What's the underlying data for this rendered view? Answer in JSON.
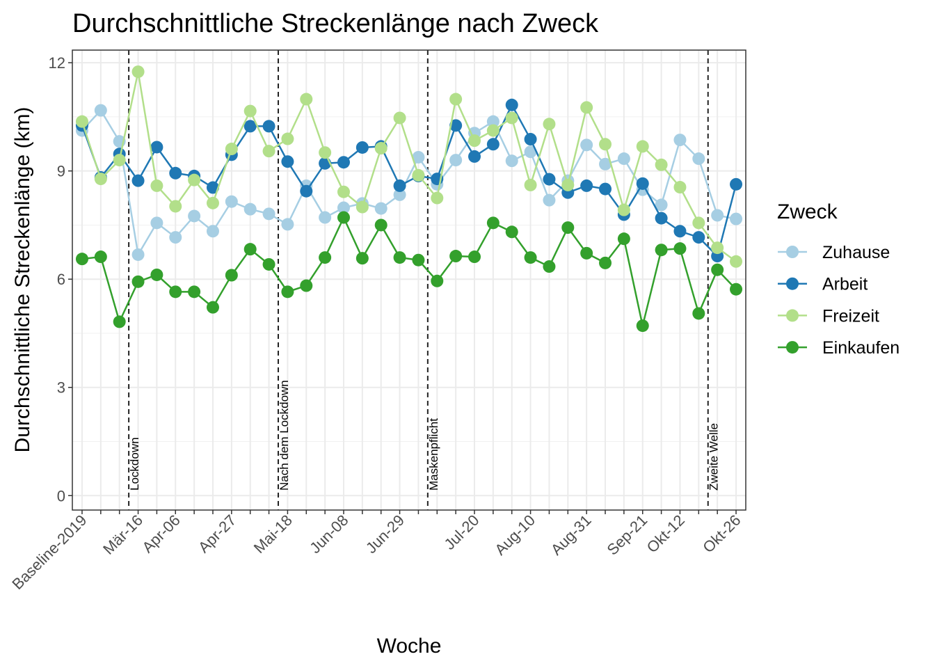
{
  "chart_data": {
    "type": "line",
    "title": "Durchschnittliche Streckenlänge nach Zweck",
    "x_label": "Woche",
    "y_label": "Durchschnittliche Streckenlänge (km)",
    "legend_title": "Zweck",
    "categories": [
      "Baseline-2019",
      null,
      null,
      "Mär-16",
      null,
      "Apr-06",
      null,
      null,
      "Apr-27",
      null,
      null,
      "Mai-18",
      null,
      null,
      "Jun-08",
      null,
      null,
      "Jun-29",
      null,
      null,
      null,
      "Jul-20",
      null,
      null,
      "Aug-10",
      null,
      null,
      "Aug-31",
      null,
      null,
      "Sep-21",
      null,
      "Okt-12",
      null,
      null,
      "Okt-26"
    ],
    "ylim": [
      -0.4,
      12.35
    ],
    "yticks": [
      0,
      3,
      6,
      9,
      12
    ],
    "grid": true,
    "legend": "right",
    "series": [
      {
        "name": "Zuhause",
        "color": "#a6cee3",
        "values": [
          10.12,
          10.68,
          9.82,
          6.68,
          7.56,
          7.16,
          7.75,
          7.33,
          8.15,
          7.94,
          7.81,
          7.52,
          8.59,
          7.71,
          7.98,
          8.1,
          7.96,
          8.34,
          9.38,
          8.63,
          9.3,
          10.05,
          10.37,
          9.28,
          9.53,
          8.19,
          8.73,
          9.72,
          9.19,
          9.34,
          8.48,
          8.06,
          9.86,
          9.34,
          7.77,
          7.67
        ]
      },
      {
        "name": "Arbeit",
        "color": "#1f78b4",
        "values": [
          10.26,
          8.82,
          9.47,
          8.73,
          9.66,
          8.94,
          8.86,
          8.54,
          9.45,
          10.24,
          10.24,
          9.26,
          8.44,
          9.21,
          9.24,
          9.65,
          9.68,
          8.59,
          8.86,
          8.78,
          10.26,
          9.4,
          9.74,
          10.83,
          9.88,
          8.77,
          8.4,
          8.59,
          8.5,
          7.79,
          8.65,
          7.69,
          7.33,
          7.16,
          6.64,
          8.63
        ]
      },
      {
        "name": "Freizeit",
        "color": "#b2df8a",
        "values": [
          10.37,
          8.78,
          9.3,
          11.75,
          8.59,
          8.02,
          8.75,
          8.11,
          9.61,
          10.66,
          9.55,
          9.89,
          10.99,
          9.51,
          8.42,
          8.0,
          9.63,
          10.47,
          8.88,
          8.25,
          10.99,
          9.84,
          10.12,
          10.47,
          8.61,
          10.3,
          8.61,
          10.76,
          9.74,
          7.92,
          9.68,
          9.17,
          8.55,
          7.56,
          6.87,
          6.49
        ]
      },
      {
        "name": "Einkaufen",
        "color": "#33a02c",
        "values": [
          6.56,
          6.62,
          4.82,
          5.93,
          6.12,
          5.65,
          5.65,
          5.22,
          6.11,
          6.83,
          6.41,
          5.65,
          5.82,
          6.6,
          7.71,
          6.58,
          7.5,
          6.6,
          6.53,
          5.95,
          6.64,
          6.62,
          7.56,
          7.31,
          6.6,
          6.35,
          7.43,
          6.72,
          6.45,
          7.12,
          4.71,
          6.81,
          6.85,
          5.05,
          6.26,
          5.72
        ]
      }
    ],
    "annotations": [
      {
        "label": "Lockdown",
        "x": 2.5
      },
      {
        "label": "Nach dem Lockdown",
        "x": 10.5
      },
      {
        "label": "Maskenpflicht",
        "x": 18.5
      },
      {
        "label": "Zweite Welle",
        "x": 33.5
      }
    ]
  }
}
